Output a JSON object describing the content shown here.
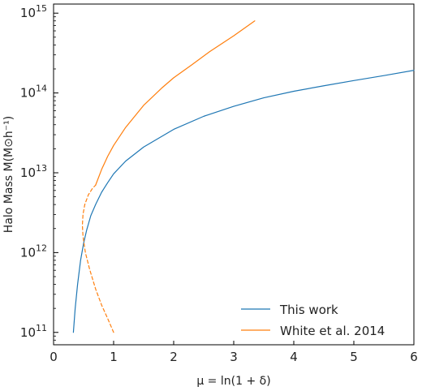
{
  "chart_data": {
    "type": "line",
    "xlabel": "μ = ln(1 + δ)",
    "ylabel": "Halo Mass M(M⊙h⁻¹)",
    "xlim": [
      0,
      6
    ],
    "ylim": [
      70000000000,
      1300000000000000
    ],
    "yscale": "log",
    "grid": false,
    "legend_position": "bottom-right",
    "x_ticks": [
      "0",
      "1",
      "2",
      "3",
      "4",
      "5",
      "6"
    ],
    "y_ticks": [
      {
        "value": 100000000000,
        "base": "10",
        "exp": "11"
      },
      {
        "value": 1000000000000,
        "base": "10",
        "exp": "12"
      },
      {
        "value": 10000000000000,
        "base": "10",
        "exp": "13"
      },
      {
        "value": 100000000000000,
        "base": "10",
        "exp": "14"
      },
      {
        "value": 1000000000000000,
        "base": "10",
        "exp": "15"
      }
    ],
    "series": [
      {
        "name": "This work",
        "color": "#1f77b4",
        "style": "solid",
        "points": [
          [
            0.33,
            100000000000
          ],
          [
            0.36,
            200000000000
          ],
          [
            0.4,
            400000000000
          ],
          [
            0.45,
            800000000000
          ],
          [
            0.5,
            1300000000000
          ],
          [
            0.55,
            1900000000000
          ],
          [
            0.62,
            2900000000000
          ],
          [
            0.7,
            4000000000000
          ],
          [
            0.8,
            5700000000000
          ],
          [
            0.9,
            7500000000000
          ],
          [
            1.0,
            9700000000000
          ],
          [
            1.2,
            14000000000000
          ],
          [
            1.5,
            21000000000000
          ],
          [
            2.0,
            35000000000000
          ],
          [
            2.5,
            51000000000000
          ],
          [
            3.0,
            68000000000000
          ],
          [
            3.5,
            87000000000000
          ],
          [
            4.0,
            105000000000000
          ],
          [
            4.5,
            123000000000000
          ],
          [
            5.0,
            143000000000000
          ],
          [
            5.5,
            165000000000000
          ],
          [
            6.0,
            192000000000000
          ]
        ]
      },
      {
        "name": "White et al. 2014",
        "color": "#ff7f0e",
        "style": "solid",
        "points": [
          [
            0.7,
            7000000000000
          ],
          [
            0.8,
            11000000000000
          ],
          [
            0.9,
            16000000000000
          ],
          [
            1.0,
            22000000000000
          ],
          [
            1.2,
            37000000000000
          ],
          [
            1.5,
            70000000000000
          ],
          [
            1.8,
            115000000000000
          ],
          [
            2.0,
            155000000000000
          ],
          [
            2.3,
            225000000000000
          ],
          [
            2.6,
            330000000000000
          ],
          [
            3.0,
            520000000000000
          ],
          [
            3.35,
            800000000000000
          ]
        ]
      },
      {
        "name": "",
        "color": "#ff7f0e",
        "style": "dashed",
        "points": [
          [
            1.0,
            100000000000
          ],
          [
            0.9,
            150000000000
          ],
          [
            0.8,
            220000000000
          ],
          [
            0.7,
            350000000000
          ],
          [
            0.6,
            620000000000
          ],
          [
            0.53,
            1000000000000
          ],
          [
            0.49,
            1600000000000
          ],
          [
            0.48,
            2200000000000
          ],
          [
            0.49,
            3000000000000
          ],
          [
            0.52,
            4000000000000
          ],
          [
            0.58,
            5300000000000
          ],
          [
            0.65,
            6400000000000
          ],
          [
            0.7,
            7000000000000
          ]
        ]
      }
    ]
  }
}
